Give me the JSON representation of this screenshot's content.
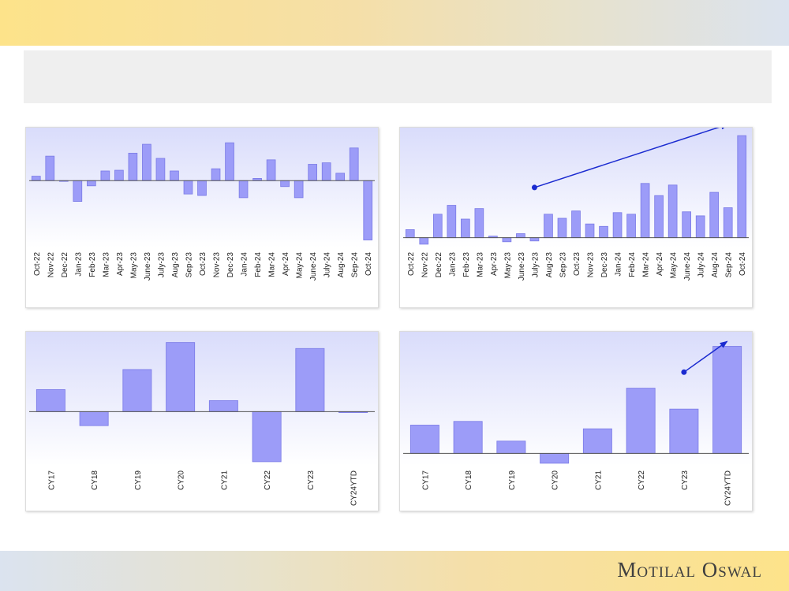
{
  "brand": {
    "name": "Motilal Oswal"
  },
  "colors": {
    "bar_fill": "#9c9cf8",
    "bar_stroke": "#7a7ae6",
    "arrow": "#1b2bd0",
    "panel_bg_top": "#d9dcfb",
    "panel_bg_bottom": "#ffffff"
  },
  "chart_data": [
    {
      "type": "bar",
      "categories": [
        "Oct-22",
        "Nov-22",
        "Dec-22",
        "Jan-23",
        "Feb-23",
        "Mar-23",
        "Apr-23",
        "May-23",
        "June-23",
        "July-23",
        "Aug-23",
        "Sep-23",
        "Oct-23",
        "Nov-23",
        "Dec-23",
        "Jan-24",
        "Feb-24",
        "Mar-24",
        "Apr-24",
        "May-24",
        "June-24",
        "July-24",
        "Aug-24",
        "Sep-24",
        "Oct-24"
      ],
      "values": [
        0.6,
        3.3,
        -0.1,
        -2.8,
        -0.7,
        1.3,
        1.4,
        3.7,
        4.9,
        3.0,
        1.3,
        -1.8,
        -2.0,
        1.6,
        5.1,
        -2.3,
        0.3,
        2.8,
        -0.8,
        -2.3,
        2.2,
        2.4,
        1.0,
        4.4,
        -8.0
      ],
      "ylim": [
        -9,
        6.5
      ],
      "title": "",
      "xlabel": "",
      "ylabel": ""
    },
    {
      "type": "bar",
      "categories": [
        "Oct-22",
        "Nov-22",
        "Dec-22",
        "Jan-23",
        "Feb-23",
        "Mar-23",
        "Apr-23",
        "May-23",
        "June-23",
        "July-23",
        "Aug-23",
        "Sep-23",
        "Oct-23",
        "Nov-23",
        "Dec-23",
        "Jan-24",
        "Feb-24",
        "Mar-24",
        "Apr-24",
        "May-24",
        "June-24",
        "July-24",
        "Aug-24",
        "Sep-24",
        "Oct-24"
      ],
      "values": [
        1.0,
        -0.8,
        2.9,
        4.0,
        2.3,
        3.6,
        0.2,
        -0.5,
        0.5,
        -0.4,
        2.9,
        2.4,
        3.3,
        1.7,
        1.4,
        3.1,
        2.9,
        6.7,
        5.2,
        6.5,
        3.2,
        2.7,
        5.6,
        3.7,
        12.6
      ],
      "ylim": [
        -1.2,
        13
      ],
      "annotations": [
        {
          "type": "trend-arrow",
          "from": {
            "category": "July-23",
            "y": 6.2
          },
          "to": {
            "category": "Sep-24",
            "y": 14.0
          }
        }
      ],
      "title": "",
      "xlabel": "",
      "ylabel": ""
    },
    {
      "type": "bar",
      "categories": [
        "CY17",
        "CY18",
        "CY19",
        "CY20",
        "CY21",
        "CY22",
        "CY23",
        "CY24YTD"
      ],
      "values": [
        2.2,
        -1.4,
        4.2,
        6.9,
        1.1,
        -5.0,
        6.3,
        -0.1
      ],
      "ylim": [
        -5.4,
        7.5
      ],
      "title": "",
      "xlabel": "",
      "ylabel": ""
    },
    {
      "type": "bar",
      "categories": [
        "CY17",
        "CY18",
        "CY19",
        "CY20",
        "CY21",
        "CY22",
        "CY23",
        "CY24YTD"
      ],
      "values": [
        2.3,
        2.6,
        1.0,
        -0.8,
        2.0,
        5.3,
        3.6,
        8.7
      ],
      "ylim": [
        -1,
        9.5
      ],
      "annotations": [
        {
          "type": "trend-arrow",
          "from": {
            "category": "CY23",
            "y": 6.6
          },
          "to": {
            "category": "CY24YTD",
            "y": 9.1
          }
        }
      ],
      "title": "",
      "xlabel": "",
      "ylabel": ""
    }
  ]
}
